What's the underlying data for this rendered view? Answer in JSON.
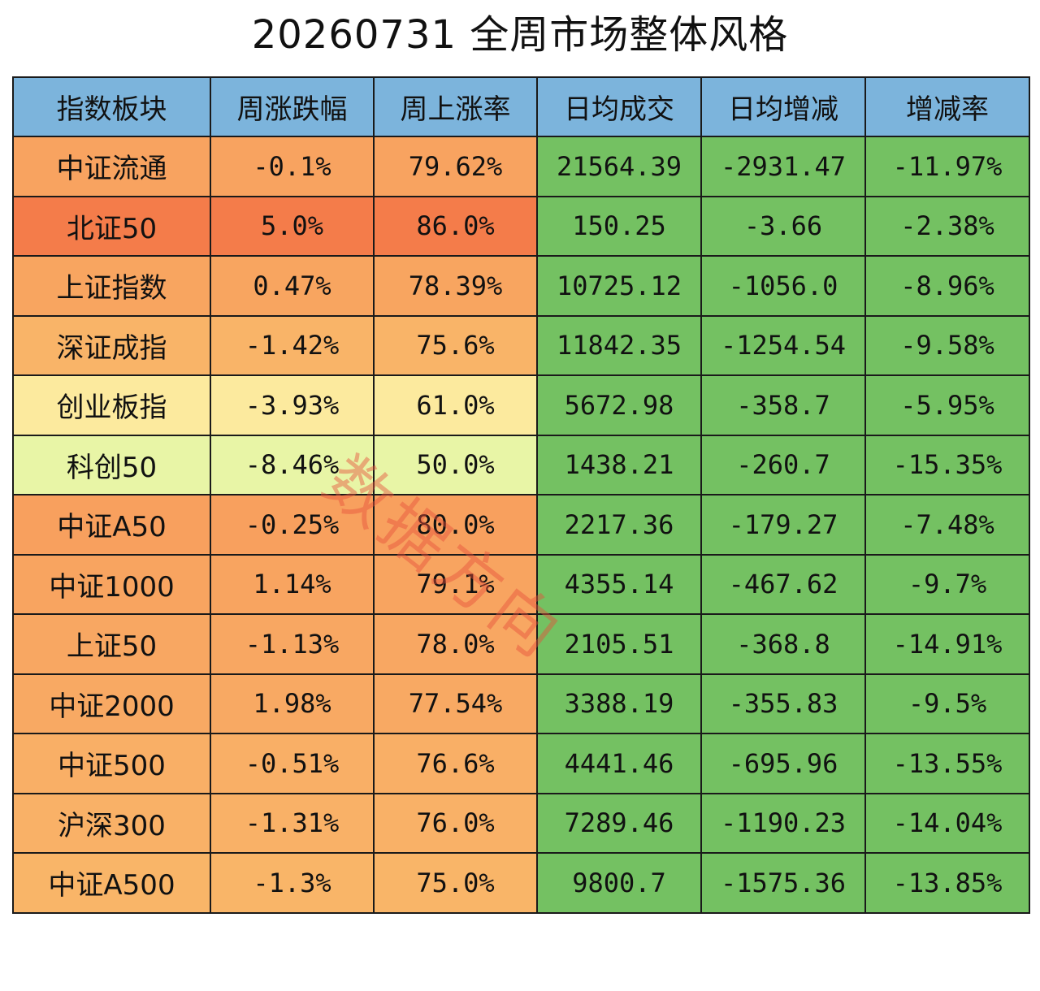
{
  "title": "20260731 全周市场整体风格",
  "watermark": "数据方向",
  "colors": {
    "header_bg": "#7cb4dc",
    "volume_cols_bg": "#74c162",
    "grid_line": "#1a1a1a"
  },
  "table": {
    "columns": [
      "指数板块",
      "周涨跌幅",
      "周上涨率",
      "日均成交",
      "日均增减",
      "增减率"
    ],
    "rows": [
      {
        "name": "中证流通",
        "weekly_change": "-0.1%",
        "weekly_up_rate": "79.62%",
        "avg_volume": "21564.39",
        "avg_delta": "-2931.47",
        "delta_rate": "-11.97%",
        "bg_name": "#f8a360",
        "bg_change": "#f8a360",
        "bg_up": "#f8a360"
      },
      {
        "name": "北证50",
        "weekly_change": "5.0%",
        "weekly_up_rate": "86.0%",
        "avg_volume": "150.25",
        "avg_delta": "-3.66",
        "delta_rate": "-2.38%",
        "bg_name": "#f47c4a",
        "bg_change": "#f47c4a",
        "bg_up": "#f47c4a"
      },
      {
        "name": "上证指数",
        "weekly_change": "0.47%",
        "weekly_up_rate": "78.39%",
        "avg_volume": "10725.12",
        "avg_delta": "-1056.0",
        "delta_rate": "-8.96%",
        "bg_name": "#f8a560",
        "bg_change": "#f8a560",
        "bg_up": "#f8a560"
      },
      {
        "name": "深证成指",
        "weekly_change": "-1.42%",
        "weekly_up_rate": "75.6%",
        "avg_volume": "11842.35",
        "avg_delta": "-1254.54",
        "delta_rate": "-9.58%",
        "bg_name": "#f9b468",
        "bg_change": "#f9b468",
        "bg_up": "#f9b468"
      },
      {
        "name": "创业板指",
        "weekly_change": "-3.93%",
        "weekly_up_rate": "61.0%",
        "avg_volume": "5672.98",
        "avg_delta": "-358.7",
        "delta_rate": "-5.95%",
        "bg_name": "#fcea9e",
        "bg_change": "#fcea9e",
        "bg_up": "#fcea9e"
      },
      {
        "name": "科创50",
        "weekly_change": "-8.46%",
        "weekly_up_rate": "50.0%",
        "avg_volume": "1438.21",
        "avg_delta": "-260.7",
        "delta_rate": "-15.35%",
        "bg_name": "#e8f5a6",
        "bg_change": "#e8f5a6",
        "bg_up": "#e8f5a6"
      },
      {
        "name": "中证A50",
        "weekly_change": "-0.25%",
        "weekly_up_rate": "80.0%",
        "avg_volume": "2217.36",
        "avg_delta": "-179.27",
        "delta_rate": "-7.48%",
        "bg_name": "#f8a05e",
        "bg_change": "#f8a05e",
        "bg_up": "#f8a05e"
      },
      {
        "name": "中证1000",
        "weekly_change": "1.14%",
        "weekly_up_rate": "79.1%",
        "avg_volume": "4355.14",
        "avg_delta": "-467.62",
        "delta_rate": "-9.7%",
        "bg_name": "#f8a460",
        "bg_change": "#f8a460",
        "bg_up": "#f8a460"
      },
      {
        "name": "上证50",
        "weekly_change": "-1.13%",
        "weekly_up_rate": "78.0%",
        "avg_volume": "2105.51",
        "avg_delta": "-368.8",
        "delta_rate": "-14.91%",
        "bg_name": "#f8a762",
        "bg_change": "#f8a762",
        "bg_up": "#f8a762"
      },
      {
        "name": "中证2000",
        "weekly_change": "1.98%",
        "weekly_up_rate": "77.54%",
        "avg_volume": "3388.19",
        "avg_delta": "-355.83",
        "delta_rate": "-9.5%",
        "bg_name": "#f8a963",
        "bg_change": "#f8a963",
        "bg_up": "#f8a963"
      },
      {
        "name": "中证500",
        "weekly_change": "-0.51%",
        "weekly_up_rate": "76.6%",
        "avg_volume": "4441.46",
        "avg_delta": "-695.96",
        "delta_rate": "-13.55%",
        "bg_name": "#f9af66",
        "bg_change": "#f9af66",
        "bg_up": "#f9af66"
      },
      {
        "name": "沪深300",
        "weekly_change": "-1.31%",
        "weekly_up_rate": "76.0%",
        "avg_volume": "7289.46",
        "avg_delta": "-1190.23",
        "delta_rate": "-14.04%",
        "bg_name": "#f9b167",
        "bg_change": "#f9b167",
        "bg_up": "#f9b167"
      },
      {
        "name": "中证A500",
        "weekly_change": "-1.3%",
        "weekly_up_rate": "75.0%",
        "avg_volume": "9800.7",
        "avg_delta": "-1575.36",
        "delta_rate": "-13.85%",
        "bg_name": "#f9b568",
        "bg_change": "#f9b568",
        "bg_up": "#f9b568"
      }
    ]
  }
}
